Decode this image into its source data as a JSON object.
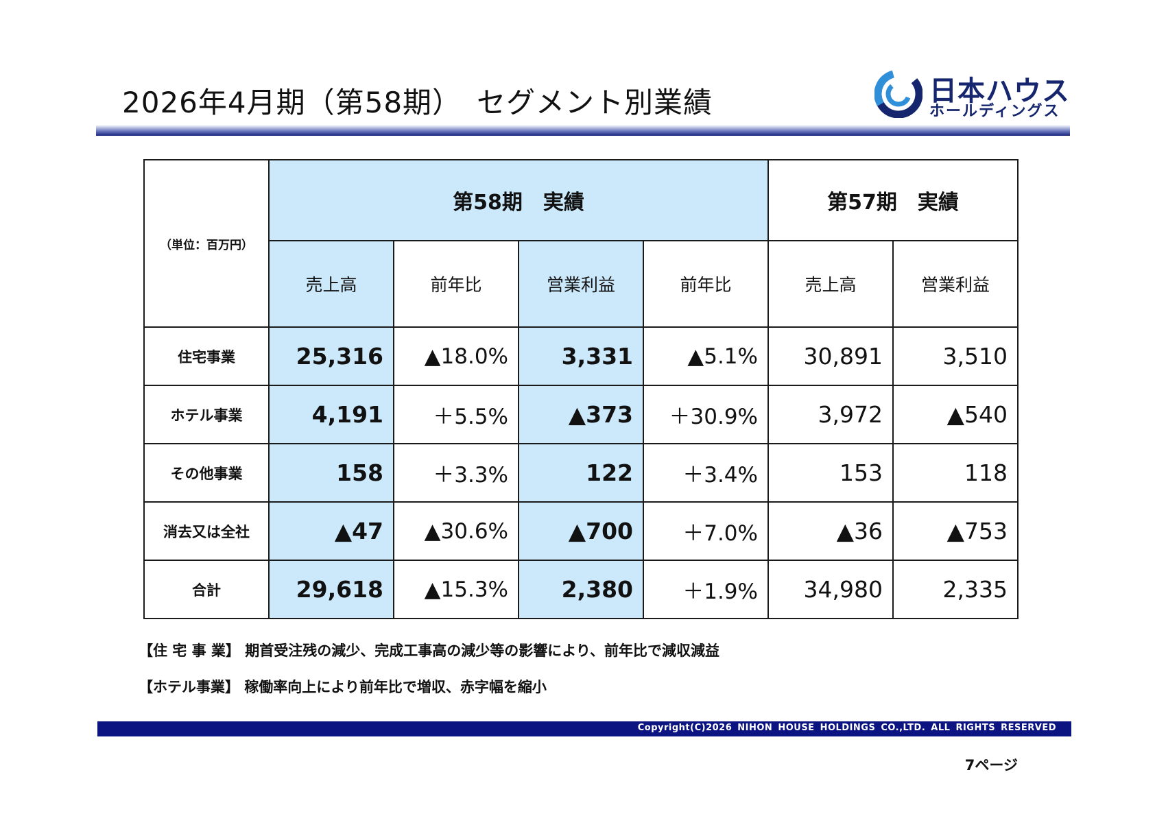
{
  "header": {
    "title": "2026年4月期（第58期）　セグメント別業績",
    "logo_main": "日本ハウス",
    "logo_sub": "ホールディングス",
    "brand_color": "#15256e"
  },
  "table": {
    "unit": "（単位：百万円）",
    "group_58": "第58期　実績",
    "group_57": "第57期　実績",
    "col_sales": "売上高",
    "col_yoy": "前年比",
    "col_op": "営業利益",
    "col_yoy2": "前年比",
    "col_sales57": "売上高",
    "col_op57": "営業利益",
    "highlight_color": "#cce9fb",
    "rows": [
      {
        "label": "住宅事業",
        "sales": "25,316",
        "sales_yoy": "▲18.0%",
        "op": "3,331",
        "op_yoy": "▲5.1%",
        "sales57": "30,891",
        "op57": "3,510"
      },
      {
        "label": "ホテル事業",
        "sales": "4,191",
        "sales_yoy": "＋5.5%",
        "op": "▲373",
        "op_yoy": "＋30.9%",
        "sales57": "3,972",
        "op57": "▲540"
      },
      {
        "label": "その他事業",
        "sales": "158",
        "sales_yoy": "＋3.3%",
        "op": "122",
        "op_yoy": "＋3.4%",
        "sales57": "153",
        "op57": "118"
      },
      {
        "label": "消去又は全社",
        "sales": "▲47",
        "sales_yoy": "▲30.6%",
        "op": "▲700",
        "op_yoy": "＋7.0%",
        "sales57": "▲36",
        "op57": "▲753"
      },
      {
        "label": "合計",
        "sales": "29,618",
        "sales_yoy": "▲15.3%",
        "op": "2,380",
        "op_yoy": "＋1.9%",
        "sales57": "34,980",
        "op57": "2,335"
      }
    ]
  },
  "notes": [
    "【住 宅 事 業】 期首受注残の減少、完成工事高の減少等の影響により、前年比で減収減益",
    "【ホテル事業】 稼働率向上により前年比で増収、赤字幅を縮小"
  ],
  "footer": {
    "copyright": "Copyright(C)2026 NIHON HOUSE HOLDINGS CO.,LTD. ALL RIGHTS RESERVED",
    "page": "7ページ",
    "bar_color": "#0b1480"
  }
}
